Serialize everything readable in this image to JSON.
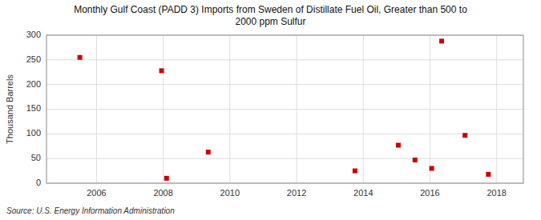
{
  "chart_data": {
    "type": "scatter",
    "title": "Monthly Gulf Coast (PADD 3) Imports from Sweden of Distillate Fuel Oil, Greater than 500 to\n2000 ppm Sulfur",
    "y_label": "Thousand Barrels",
    "annotations": [
      "Source: U.S. Energy Information Administration"
    ],
    "x": [
      2005.5,
      2007.95,
      2008.1,
      2009.35,
      2013.75,
      2015.05,
      2015.55,
      2016.05,
      2016.35,
      2017.05,
      2017.75
    ],
    "values": [
      255,
      228,
      10,
      63,
      25,
      77,
      47,
      30,
      288,
      97,
      18
    ],
    "color": "#cc0000",
    "marker": "square",
    "xlim": [
      2004.5,
      2018.8
    ],
    "ylim": [
      0,
      300
    ],
    "xticks": [
      2006,
      2008,
      2010,
      2012,
      2014,
      2016,
      2018
    ],
    "yticks": [
      0,
      50,
      100,
      150,
      200,
      250,
      300
    ],
    "grid": true
  }
}
